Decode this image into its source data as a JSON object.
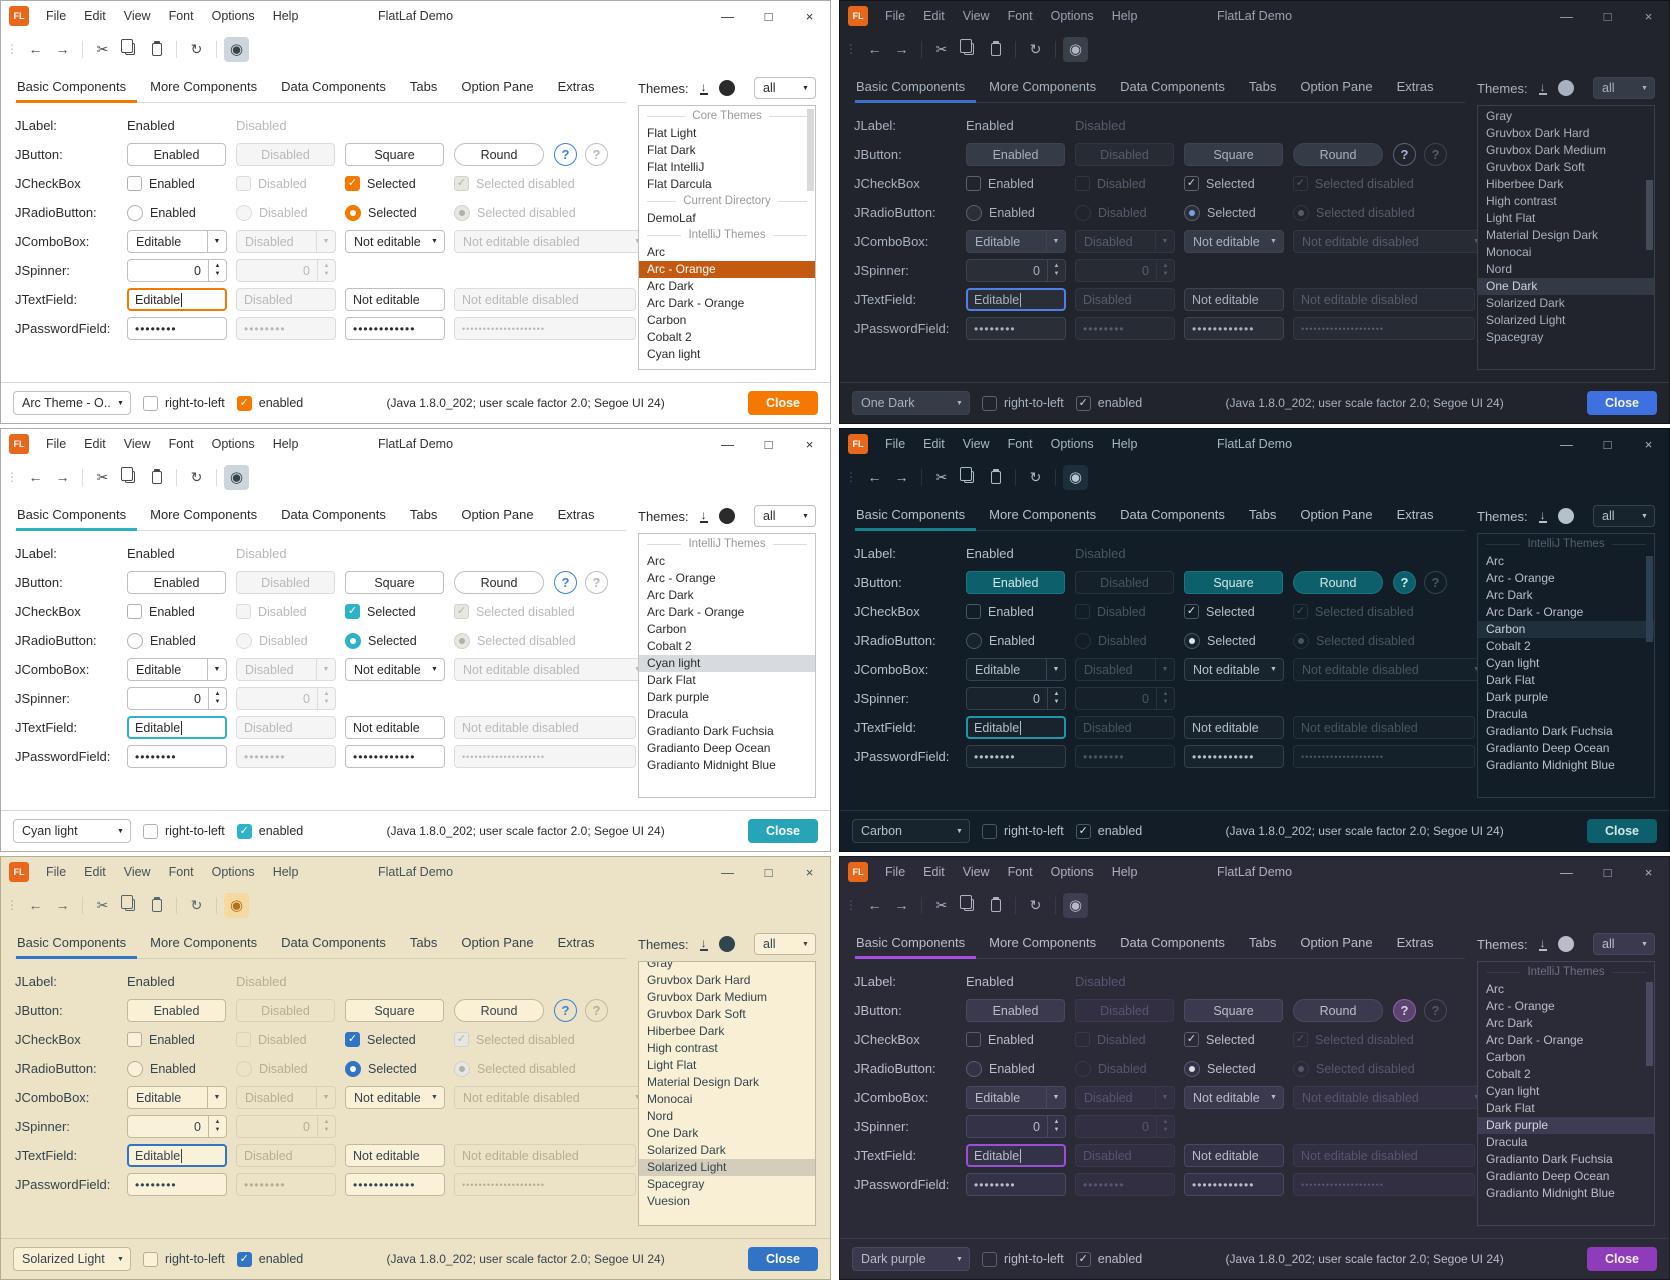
{
  "shared": {
    "title": "FlatLaf Demo",
    "logo": "FL",
    "menus": [
      "File",
      "Edit",
      "View",
      "Font",
      "Options",
      "Help"
    ],
    "icons": {
      "minimize": "—",
      "maximize": "□",
      "close": "×",
      "back": "←",
      "forward": "→",
      "cut": "✂",
      "refresh": "↻",
      "eye": "◉",
      "grip": "⋮",
      "combo_arrow": "▼",
      "spin_up": "▲",
      "spin_down": "▼",
      "download": "↓",
      "help": "?"
    },
    "tabs": [
      "Basic Components",
      "More Components",
      "Data Components",
      "Tabs",
      "Option Pane",
      "Extras"
    ],
    "themes_label": "Themes:",
    "themes_filter": "all",
    "rows": {
      "jlabel": {
        "label": "JLabel:",
        "cells": [
          "Enabled",
          "Disabled"
        ]
      },
      "jbutton": {
        "label": "JButton:",
        "cells": [
          "Enabled",
          "Disabled",
          "Square",
          "Round"
        ]
      },
      "jcheckbox": {
        "label": "JCheckBox",
        "cells": [
          "Enabled",
          "Disabled",
          "Selected",
          "Selected disabled"
        ]
      },
      "jradiobutton": {
        "label": "JRadioButton:",
        "cells": [
          "Enabled",
          "Disabled",
          "Selected",
          "Selected disabled"
        ]
      },
      "jcombobox": {
        "label": "JComboBox:",
        "cells": [
          "Editable",
          "Disabled",
          "Not editable",
          "Not editable disabled"
        ]
      },
      "jspinner": {
        "label": "JSpinner:",
        "value": "0"
      },
      "jtextfield": {
        "label": "JTextField:",
        "cells": [
          "Editable",
          "Disabled",
          "Not editable",
          "Not editable disabled"
        ]
      },
      "jpasswordfield": {
        "label": "JPasswordField:",
        "dots": [
          8,
          8,
          12,
          20
        ]
      }
    },
    "footer": {
      "rtl": "right-to-left",
      "enabled": "enabled",
      "status": "(Java 1.8.0_202;  user scale factor 2.0; Segoe UI 24)",
      "close": "Close"
    }
  },
  "windows": [
    {
      "theme": "arc-orange",
      "mode": "light",
      "footer_theme": "Arc Theme - O...",
      "selected_theme": "Arc - Orange",
      "themes": [
        {
          "sep": "Core Themes"
        },
        {
          "item": "Flat Light"
        },
        {
          "item": "Flat Dark"
        },
        {
          "item": "Flat IntelliJ"
        },
        {
          "item": "Flat Darcula"
        },
        {
          "sep": "Current Directory"
        },
        {
          "item": "DemoLaf"
        },
        {
          "sep": "IntelliJ Themes"
        },
        {
          "item": "Arc"
        },
        {
          "item": "Arc - Orange"
        },
        {
          "item": "Arc Dark"
        },
        {
          "item": "Arc Dark - Orange"
        },
        {
          "item": "Carbon"
        },
        {
          "item": "Cobalt 2"
        },
        {
          "item": "Cyan light"
        }
      ]
    },
    {
      "theme": "one-dark",
      "mode": "dark",
      "footer_theme": "One Dark",
      "selected_theme": "One Dark",
      "themes": [
        {
          "item": "Gray"
        },
        {
          "item": "Gruvbox Dark Hard"
        },
        {
          "item": "Gruvbox Dark Medium"
        },
        {
          "item": "Gruvbox Dark Soft"
        },
        {
          "item": "Hiberbee Dark"
        },
        {
          "item": "High contrast"
        },
        {
          "item": "Light Flat"
        },
        {
          "item": "Material Design Dark"
        },
        {
          "item": "Monocai"
        },
        {
          "item": "Nord"
        },
        {
          "item": "One Dark"
        },
        {
          "item": "Solarized Dark"
        },
        {
          "item": "Solarized Light"
        },
        {
          "item": "Spacegray"
        }
      ]
    },
    {
      "theme": "cyan-light",
      "mode": "light",
      "footer_theme": "Cyan light",
      "selected_theme": "Cyan light",
      "themes": [
        {
          "sep": "IntelliJ Themes"
        },
        {
          "item": "Arc"
        },
        {
          "item": "Arc - Orange"
        },
        {
          "item": "Arc Dark"
        },
        {
          "item": "Arc Dark - Orange"
        },
        {
          "item": "Carbon"
        },
        {
          "item": "Cobalt 2"
        },
        {
          "item": "Cyan light"
        },
        {
          "item": "Dark Flat"
        },
        {
          "item": "Dark purple"
        },
        {
          "item": "Dracula"
        },
        {
          "item": "Gradianto Dark Fuchsia"
        },
        {
          "item": "Gradianto Deep Ocean"
        },
        {
          "item": "Gradianto Midnight Blue"
        }
      ]
    },
    {
      "theme": "carbon",
      "mode": "dark",
      "footer_theme": "Carbon",
      "selected_theme": "Carbon",
      "themes": [
        {
          "sep": "IntelliJ Themes"
        },
        {
          "item": "Arc"
        },
        {
          "item": "Arc - Orange"
        },
        {
          "item": "Arc Dark"
        },
        {
          "item": "Arc Dark - Orange"
        },
        {
          "item": "Carbon"
        },
        {
          "item": "Cobalt 2"
        },
        {
          "item": "Cyan light"
        },
        {
          "item": "Dark Flat"
        },
        {
          "item": "Dark purple"
        },
        {
          "item": "Dracula"
        },
        {
          "item": "Gradianto Dark Fuchsia"
        },
        {
          "item": "Gradianto Deep Ocean"
        },
        {
          "item": "Gradianto Midnight Blue"
        }
      ]
    },
    {
      "theme": "solarized-light",
      "mode": "light",
      "footer_theme": "Solarized Light",
      "selected_theme": "Solarized Light",
      "themes": [
        {
          "item": "Gray"
        },
        {
          "item": "Gruvbox Dark Hard"
        },
        {
          "item": "Gruvbox Dark Medium"
        },
        {
          "item": "Gruvbox Dark Soft"
        },
        {
          "item": "Hiberbee Dark"
        },
        {
          "item": "High contrast"
        },
        {
          "item": "Light Flat"
        },
        {
          "item": "Material Design Dark"
        },
        {
          "item": "Monocai"
        },
        {
          "item": "Nord"
        },
        {
          "item": "One Dark"
        },
        {
          "item": "Solarized Dark"
        },
        {
          "item": "Solarized Light"
        },
        {
          "item": "Spacegray"
        },
        {
          "item": "Vuesion"
        }
      ]
    },
    {
      "theme": "dark-purple",
      "mode": "dark",
      "footer_theme": "Dark purple",
      "selected_theme": "Dark purple",
      "themes": [
        {
          "sep": "IntelliJ Themes"
        },
        {
          "item": "Arc"
        },
        {
          "item": "Arc - Orange"
        },
        {
          "item": "Arc Dark"
        },
        {
          "item": "Arc Dark - Orange"
        },
        {
          "item": "Carbon"
        },
        {
          "item": "Cobalt 2"
        },
        {
          "item": "Cyan light"
        },
        {
          "item": "Dark Flat"
        },
        {
          "item": "Dark purple"
        },
        {
          "item": "Dracula"
        },
        {
          "item": "Gradianto Dark Fuchsia"
        },
        {
          "item": "Gradianto Deep Ocean"
        },
        {
          "item": "Gradianto Midnight Blue"
        }
      ]
    }
  ]
}
